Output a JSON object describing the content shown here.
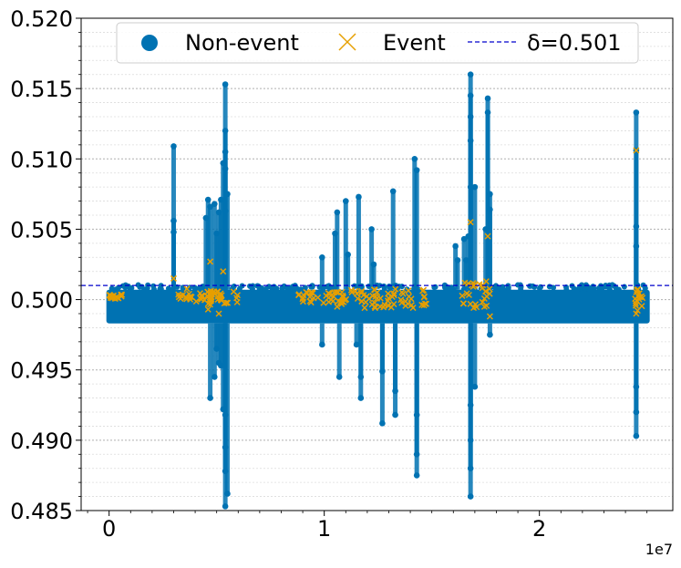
{
  "chart_data": {
    "type": "scatter",
    "title": "",
    "xlabel": "",
    "ylabel": "",
    "x_multiplier_label": "1e7",
    "xlim": [
      -0.13,
      2.62
    ],
    "ylim": [
      0.485,
      0.52
    ],
    "x_ticks": [
      {
        "value": 0,
        "label": "0"
      },
      {
        "value": 1,
        "label": "1"
      },
      {
        "value": 2,
        "label": "2"
      }
    ],
    "y_ticks": [
      {
        "value": 0.485,
        "label": "0.485"
      },
      {
        "value": 0.49,
        "label": "0.490"
      },
      {
        "value": 0.495,
        "label": "0.495"
      },
      {
        "value": 0.5,
        "label": "0.500"
      },
      {
        "value": 0.505,
        "label": "0.505"
      },
      {
        "value": 0.51,
        "label": "0.510"
      },
      {
        "value": 0.515,
        "label": "0.515"
      },
      {
        "value": 0.52,
        "label": "0.520"
      }
    ],
    "grid": true,
    "legend_position": "top-center",
    "threshold": {
      "name": "δ=0.501",
      "value": 0.501,
      "color": "#0000cc"
    },
    "series": [
      {
        "name": "Non-event",
        "marker": "circle",
        "color": "#0072b2",
        "band": {
          "x_range": [
            0.0,
            2.5
          ],
          "y_range": [
            0.4983,
            0.5007
          ]
        },
        "points": [
          [
            0.3,
            0.5109
          ],
          [
            0.3,
            0.5056
          ],
          [
            0.3,
            0.5048
          ],
          [
            0.45,
            0.5058
          ],
          [
            0.46,
            0.5071
          ],
          [
            0.47,
            0.5066
          ],
          [
            0.47,
            0.493
          ],
          [
            0.49,
            0.5068
          ],
          [
            0.49,
            0.4945
          ],
          [
            0.5,
            0.5047
          ],
          [
            0.5,
            0.4965
          ],
          [
            0.51,
            0.5062
          ],
          [
            0.51,
            0.4955
          ],
          [
            0.52,
            0.5071
          ],
          [
            0.52,
            0.4953
          ],
          [
            0.53,
            0.5097
          ],
          [
            0.53,
            0.4922
          ],
          [
            0.54,
            0.5153
          ],
          [
            0.54,
            0.512
          ],
          [
            0.54,
            0.5105
          ],
          [
            0.54,
            0.5093
          ],
          [
            0.54,
            0.5063
          ],
          [
            0.54,
            0.4918
          ],
          [
            0.54,
            0.4895
          ],
          [
            0.54,
            0.4878
          ],
          [
            0.54,
            0.4853
          ],
          [
            0.55,
            0.5075
          ],
          [
            0.55,
            0.4862
          ],
          [
            0.85,
            0.5008
          ],
          [
            0.87,
            0.5008
          ],
          [
            0.99,
            0.503
          ],
          [
            0.99,
            0.4968
          ],
          [
            1.05,
            0.5047
          ],
          [
            1.06,
            0.5062
          ],
          [
            1.07,
            0.4945
          ],
          [
            1.1,
            0.507
          ],
          [
            1.11,
            0.5032
          ],
          [
            1.15,
            0.4968
          ],
          [
            1.16,
            0.5073
          ],
          [
            1.17,
            0.4945
          ],
          [
            1.17,
            0.493
          ],
          [
            1.22,
            0.505
          ],
          [
            1.23,
            0.5025
          ],
          [
            1.27,
            0.4949
          ],
          [
            1.27,
            0.4912
          ],
          [
            1.32,
            0.5077
          ],
          [
            1.33,
            0.4935
          ],
          [
            1.33,
            0.4918
          ],
          [
            1.42,
            0.51
          ],
          [
            1.43,
            0.5092
          ],
          [
            1.43,
            0.4918
          ],
          [
            1.43,
            0.4875
          ],
          [
            1.43,
            0.489
          ],
          [
            1.61,
            0.5038
          ],
          [
            1.62,
            0.5028
          ],
          [
            1.65,
            0.5043
          ],
          [
            1.66,
            0.5028
          ],
          [
            1.67,
            0.5045
          ],
          [
            1.68,
            0.516
          ],
          [
            1.68,
            0.5145
          ],
          [
            1.68,
            0.513
          ],
          [
            1.68,
            0.5113
          ],
          [
            1.68,
            0.508
          ],
          [
            1.68,
            0.4925
          ],
          [
            1.68,
            0.49
          ],
          [
            1.68,
            0.488
          ],
          [
            1.68,
            0.486
          ],
          [
            1.7,
            0.508
          ],
          [
            1.7,
            0.4938
          ],
          [
            1.76,
            0.5143
          ],
          [
            1.76,
            0.5133
          ],
          [
            1.75,
            0.505
          ],
          [
            1.77,
            0.5075
          ],
          [
            1.77,
            0.5064
          ],
          [
            1.77,
            0.4975
          ],
          [
            2.45,
            0.5133
          ],
          [
            2.45,
            0.5106
          ],
          [
            2.45,
            0.5052
          ],
          [
            2.45,
            0.5038
          ],
          [
            2.45,
            0.4938
          ],
          [
            2.45,
            0.492
          ],
          [
            2.45,
            0.4903
          ]
        ]
      },
      {
        "name": "Event",
        "marker": "x",
        "color": "#e69f00",
        "clusters": [
          {
            "x_range": [
              0.0,
              0.06
            ],
            "y_range": [
              0.5,
              0.5004
            ]
          },
          {
            "x_range": [
              0.32,
              0.48
            ],
            "y_range": [
              0.4998,
              0.5008
            ]
          },
          {
            "x_range": [
              0.46,
              0.6
            ],
            "y_range": [
              0.4996,
              0.5006
            ]
          },
          {
            "x_range": [
              0.88,
              1.1
            ],
            "y_range": [
              0.4996,
              0.5006
            ]
          },
          {
            "x_range": [
              1.1,
              1.48
            ],
            "y_range": [
              0.4994,
              0.5008
            ]
          },
          {
            "x_range": [
              1.64,
              1.78
            ],
            "y_range": [
              0.4994,
              0.5014
            ]
          },
          {
            "x_range": [
              2.44,
              2.48
            ],
            "y_range": [
              0.4992,
              0.5008
            ]
          }
        ],
        "points": [
          [
            0.3,
            0.5015
          ],
          [
            0.47,
            0.5027
          ],
          [
            0.53,
            0.502
          ],
          [
            0.46,
            0.4993
          ],
          [
            0.51,
            0.499
          ],
          [
            1.06,
            0.4995
          ],
          [
            1.26,
            0.4995
          ],
          [
            1.68,
            0.5055
          ],
          [
            1.76,
            0.5045
          ],
          [
            1.77,
            0.4988
          ],
          [
            2.45,
            0.5106
          ],
          [
            2.45,
            0.499
          ]
        ]
      }
    ]
  }
}
